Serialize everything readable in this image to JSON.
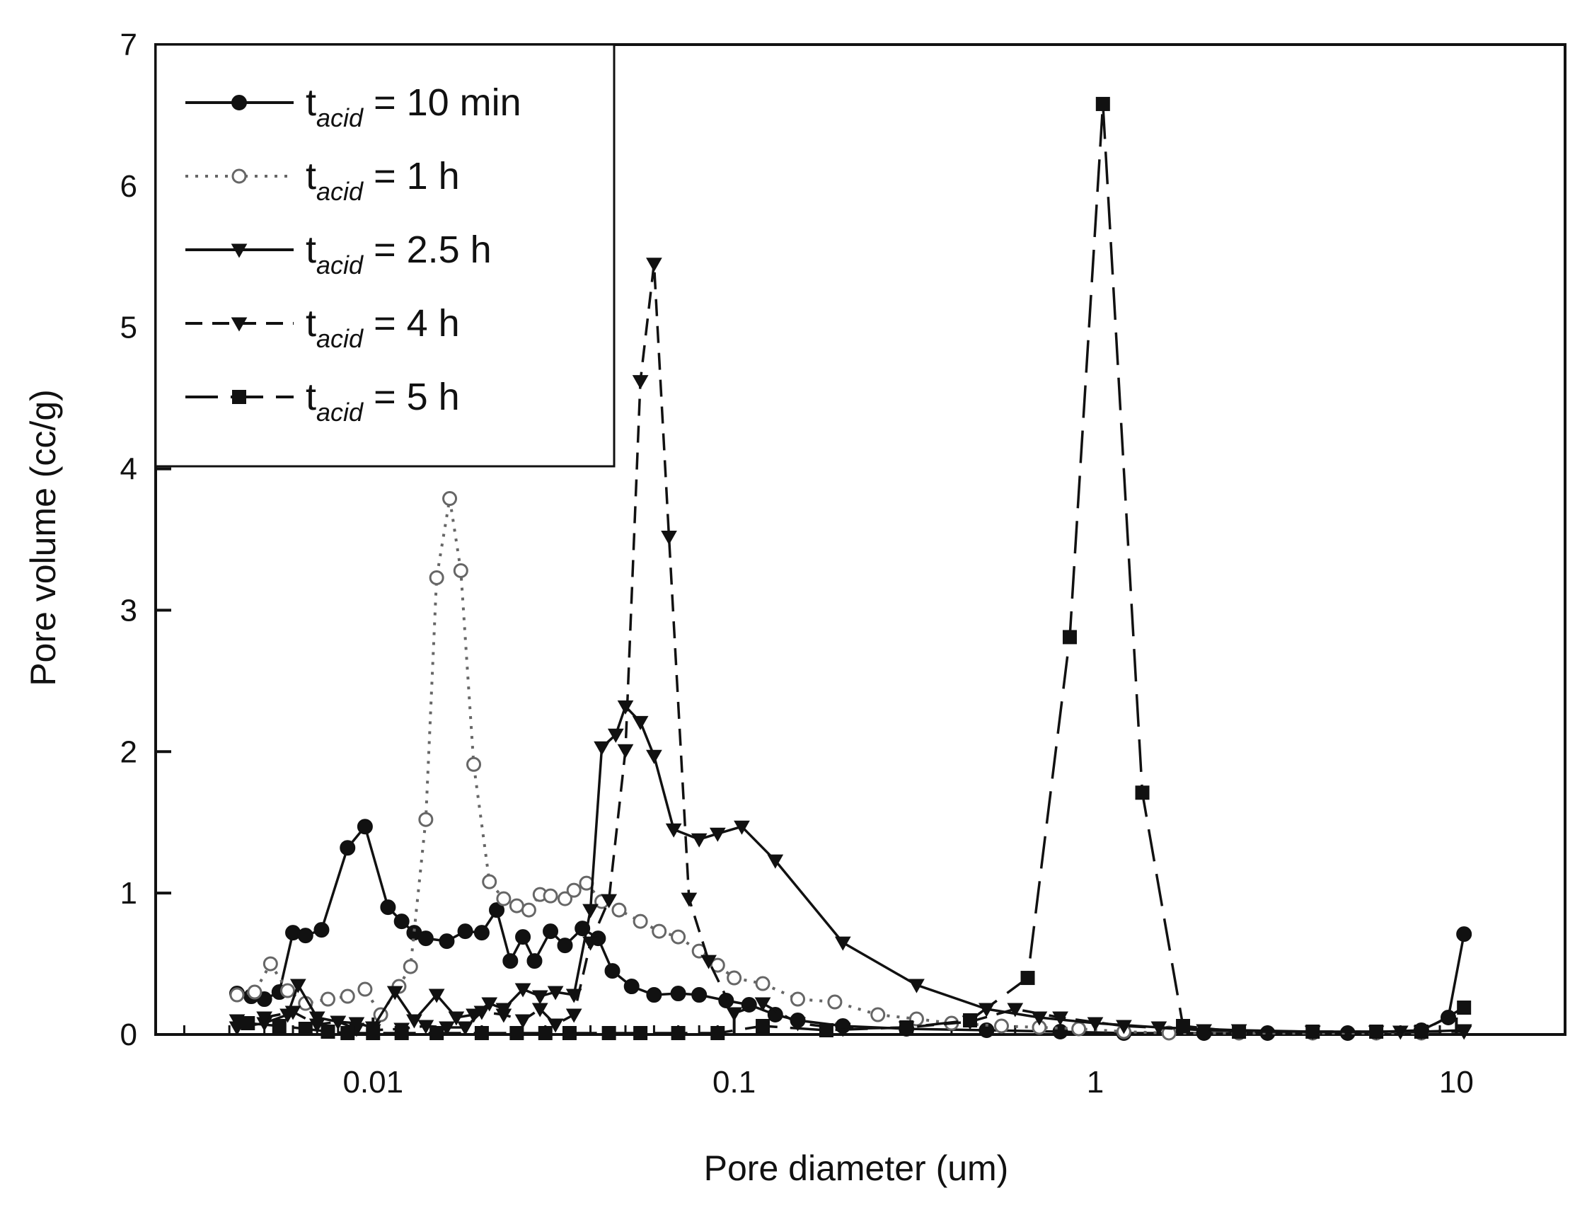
{
  "chart_data": {
    "type": "line",
    "xlabel": "Pore diameter (um)",
    "ylabel": "Pore volume (cc/g)",
    "x_scale": "log",
    "xlim": [
      0.0025,
      20
    ],
    "ylim": [
      0,
      7
    ],
    "x_ticks": [
      0.01,
      0.1,
      1,
      10
    ],
    "x_tick_labels": [
      "0.01",
      "0.1",
      "1",
      "10"
    ],
    "y_ticks": [
      0,
      1,
      2,
      3,
      4,
      5,
      6,
      7
    ],
    "y_tick_labels": [
      "0",
      "1",
      "2",
      "3",
      "4",
      "5",
      "6",
      "7"
    ],
    "grid": false,
    "legend_position": "top-left",
    "series": [
      {
        "name": "t",
        "name_sub": "acid",
        "name_rest": " = 10 min",
        "line": "solid",
        "marker": "filled-circle",
        "color": "#111111",
        "points": [
          [
            0.0042,
            0.29
          ],
          [
            0.0046,
            0.27
          ],
          [
            0.005,
            0.25
          ],
          [
            0.0055,
            0.3
          ],
          [
            0.006,
            0.72
          ],
          [
            0.0065,
            0.7
          ],
          [
            0.0072,
            0.74
          ],
          [
            0.0085,
            1.32
          ],
          [
            0.0095,
            1.47
          ],
          [
            0.011,
            0.9
          ],
          [
            0.012,
            0.8
          ],
          [
            0.013,
            0.72
          ],
          [
            0.014,
            0.68
          ],
          [
            0.016,
            0.66
          ],
          [
            0.018,
            0.73
          ],
          [
            0.02,
            0.72
          ],
          [
            0.022,
            0.88
          ],
          [
            0.024,
            0.52
          ],
          [
            0.026,
            0.69
          ],
          [
            0.028,
            0.52
          ],
          [
            0.031,
            0.73
          ],
          [
            0.034,
            0.63
          ],
          [
            0.038,
            0.75
          ],
          [
            0.042,
            0.68
          ],
          [
            0.046,
            0.45
          ],
          [
            0.052,
            0.34
          ],
          [
            0.06,
            0.28
          ],
          [
            0.07,
            0.29
          ],
          [
            0.08,
            0.28
          ],
          [
            0.095,
            0.24
          ],
          [
            0.11,
            0.21
          ],
          [
            0.13,
            0.14
          ],
          [
            0.15,
            0.1
          ],
          [
            0.2,
            0.06
          ],
          [
            0.3,
            0.04
          ],
          [
            0.5,
            0.03
          ],
          [
            0.8,
            0.02
          ],
          [
            1.2,
            0.01
          ],
          [
            2,
            0.01
          ],
          [
            3,
            0.01
          ],
          [
            5,
            0.01
          ],
          [
            8,
            0.03
          ],
          [
            9.5,
            0.12
          ],
          [
            10.5,
            0.71
          ]
        ]
      },
      {
        "name": "t",
        "name_sub": "acid",
        "name_rest": " = 1 h",
        "line": "dotted",
        "marker": "open-circle",
        "color": "#666666",
        "points": [
          [
            0.0042,
            0.28
          ],
          [
            0.0047,
            0.3
          ],
          [
            0.0052,
            0.5
          ],
          [
            0.0058,
            0.31
          ],
          [
            0.0065,
            0.22
          ],
          [
            0.0075,
            0.25
          ],
          [
            0.0085,
            0.27
          ],
          [
            0.0095,
            0.32
          ],
          [
            0.0105,
            0.14
          ],
          [
            0.0118,
            0.34
          ],
          [
            0.0127,
            0.48
          ],
          [
            0.014,
            1.52
          ],
          [
            0.015,
            3.23
          ],
          [
            0.0163,
            3.79
          ],
          [
            0.0175,
            3.28
          ],
          [
            0.019,
            1.91
          ],
          [
            0.021,
            1.08
          ],
          [
            0.023,
            0.96
          ],
          [
            0.025,
            0.91
          ],
          [
            0.027,
            0.88
          ],
          [
            0.029,
            0.99
          ],
          [
            0.031,
            0.98
          ],
          [
            0.034,
            0.96
          ],
          [
            0.036,
            1.02
          ],
          [
            0.039,
            1.07
          ],
          [
            0.043,
            0.94
          ],
          [
            0.048,
            0.88
          ],
          [
            0.055,
            0.8
          ],
          [
            0.062,
            0.73
          ],
          [
            0.07,
            0.69
          ],
          [
            0.08,
            0.59
          ],
          [
            0.09,
            0.49
          ],
          [
            0.1,
            0.4
          ],
          [
            0.12,
            0.36
          ],
          [
            0.15,
            0.25
          ],
          [
            0.19,
            0.23
          ],
          [
            0.25,
            0.14
          ],
          [
            0.32,
            0.11
          ],
          [
            0.4,
            0.08
          ],
          [
            0.55,
            0.06
          ],
          [
            0.7,
            0.05
          ],
          [
            0.9,
            0.04
          ],
          [
            1.2,
            0.02
          ],
          [
            1.6,
            0.01
          ],
          [
            2.5,
            0.01
          ],
          [
            4,
            0.01
          ],
          [
            6,
            0.01
          ],
          [
            8,
            0.01
          ]
        ]
      },
      {
        "name": "t",
        "name_sub": "acid",
        "name_rest": " = 2.5 h",
        "line": "solid",
        "marker": "filled-triangle-down",
        "color": "#111111",
        "points": [
          [
            0.0042,
            0.05
          ],
          [
            0.005,
            0.08
          ],
          [
            0.0058,
            0.14
          ],
          [
            0.0062,
            0.35
          ],
          [
            0.007,
            0.12
          ],
          [
            0.008,
            0.09
          ],
          [
            0.009,
            0.08
          ],
          [
            0.01,
            0.05
          ],
          [
            0.0115,
            0.3
          ],
          [
            0.013,
            0.1
          ],
          [
            0.015,
            0.28
          ],
          [
            0.017,
            0.12
          ],
          [
            0.019,
            0.14
          ],
          [
            0.021,
            0.22
          ],
          [
            0.023,
            0.18
          ],
          [
            0.026,
            0.32
          ],
          [
            0.029,
            0.27
          ],
          [
            0.032,
            0.3
          ],
          [
            0.036,
            0.28
          ],
          [
            0.04,
            0.88
          ],
          [
            0.043,
            2.03
          ],
          [
            0.047,
            2.12
          ],
          [
            0.05,
            2.32
          ],
          [
            0.055,
            2.21
          ],
          [
            0.06,
            1.97
          ],
          [
            0.068,
            1.45
          ],
          [
            0.08,
            1.38
          ],
          [
            0.09,
            1.42
          ],
          [
            0.105,
            1.47
          ],
          [
            0.13,
            1.23
          ],
          [
            0.2,
            0.65
          ],
          [
            0.32,
            0.35
          ],
          [
            0.5,
            0.18
          ],
          [
            0.7,
            0.12
          ],
          [
            1,
            0.08
          ],
          [
            1.5,
            0.05
          ],
          [
            2.5,
            0.03
          ],
          [
            4,
            0.02
          ],
          [
            6,
            0.02
          ],
          [
            8,
            0.02
          ],
          [
            10.5,
            0.03
          ]
        ]
      },
      {
        "name": "t",
        "name_sub": "acid",
        "name_rest": " = 4 h",
        "line": "dash",
        "marker": "filled-triangle-down",
        "color": "#111111",
        "points": [
          [
            0.0042,
            0.1
          ],
          [
            0.005,
            0.12
          ],
          [
            0.006,
            0.16
          ],
          [
            0.007,
            0.07
          ],
          [
            0.008,
            0.09
          ],
          [
            0.009,
            0.04
          ],
          [
            0.01,
            0.03
          ],
          [
            0.012,
            0.04
          ],
          [
            0.014,
            0.06
          ],
          [
            0.016,
            0.05
          ],
          [
            0.018,
            0.05
          ],
          [
            0.02,
            0.16
          ],
          [
            0.023,
            0.14
          ],
          [
            0.026,
            0.1
          ],
          [
            0.029,
            0.18
          ],
          [
            0.032,
            0.07
          ],
          [
            0.036,
            0.14
          ],
          [
            0.04,
            0.65
          ],
          [
            0.045,
            0.95
          ],
          [
            0.05,
            2.01
          ],
          [
            0.055,
            4.62
          ],
          [
            0.06,
            5.45
          ],
          [
            0.066,
            3.52
          ],
          [
            0.075,
            0.96
          ],
          [
            0.085,
            0.52
          ],
          [
            0.1,
            0.15
          ],
          [
            0.12,
            0.22
          ],
          [
            0.15,
            0.08
          ],
          [
            0.2,
            0.04
          ],
          [
            0.3,
            0.05
          ],
          [
            0.45,
            0.09
          ],
          [
            0.6,
            0.18
          ],
          [
            0.8,
            0.12
          ],
          [
            1.2,
            0.06
          ],
          [
            2,
            0.03
          ],
          [
            4,
            0.02
          ],
          [
            7,
            0.02
          ],
          [
            10.5,
            0.02
          ]
        ]
      },
      {
        "name": "t",
        "name_sub": "acid",
        "name_rest": " = 5 h",
        "line": "long-dash",
        "marker": "filled-square",
        "color": "#111111",
        "points": [
          [
            0.0045,
            0.08
          ],
          [
            0.0055,
            0.06
          ],
          [
            0.0065,
            0.04
          ],
          [
            0.0075,
            0.02
          ],
          [
            0.0085,
            0.01
          ],
          [
            0.01,
            0.01
          ],
          [
            0.012,
            0.01
          ],
          [
            0.015,
            0.01
          ],
          [
            0.02,
            0.01
          ],
          [
            0.025,
            0.01
          ],
          [
            0.03,
            0.01
          ],
          [
            0.035,
            0.01
          ],
          [
            0.045,
            0.01
          ],
          [
            0.055,
            0.01
          ],
          [
            0.07,
            0.01
          ],
          [
            0.09,
            0.01
          ],
          [
            0.12,
            0.06
          ],
          [
            0.18,
            0.03
          ],
          [
            0.3,
            0.05
          ],
          [
            0.45,
            0.1
          ],
          [
            0.65,
            0.4
          ],
          [
            0.85,
            2.81
          ],
          [
            1.05,
            6.58
          ],
          [
            1.35,
            1.71
          ],
          [
            1.75,
            0.06
          ],
          [
            2.5,
            0.02
          ],
          [
            4,
            0.02
          ],
          [
            6,
            0.02
          ],
          [
            8,
            0.02
          ],
          [
            10.5,
            0.19
          ]
        ]
      }
    ]
  }
}
